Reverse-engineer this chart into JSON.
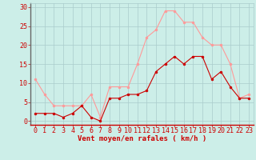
{
  "x": [
    0,
    1,
    2,
    3,
    4,
    5,
    6,
    7,
    8,
    9,
    10,
    11,
    12,
    13,
    14,
    15,
    16,
    17,
    18,
    19,
    20,
    21,
    22,
    23
  ],
  "wind_mean": [
    2,
    2,
    2,
    1,
    2,
    4,
    1,
    0,
    6,
    6,
    7,
    7,
    8,
    13,
    15,
    17,
    15,
    17,
    17,
    11,
    13,
    9,
    6,
    6
  ],
  "wind_gust": [
    11,
    7,
    4,
    4,
    4,
    4,
    7,
    1,
    9,
    9,
    9,
    15,
    22,
    24,
    29,
    29,
    26,
    26,
    22,
    20,
    20,
    15,
    6,
    7
  ],
  "line_mean_color": "#cc0000",
  "line_gust_color": "#ff9999",
  "bg_color": "#cceee8",
  "grid_color": "#aacccc",
  "tick_color": "#cc0000",
  "xlabel": "Vent moyen/en rafales ( km/h )",
  "ylabel_ticks": [
    0,
    5,
    10,
    15,
    20,
    25,
    30
  ],
  "ylim": [
    -1,
    31
  ],
  "xlim": [
    -0.5,
    23.5
  ],
  "xlabel_fontsize": 6.5,
  "tick_fontsize": 6,
  "marker_size": 2.0,
  "line_width": 0.8
}
